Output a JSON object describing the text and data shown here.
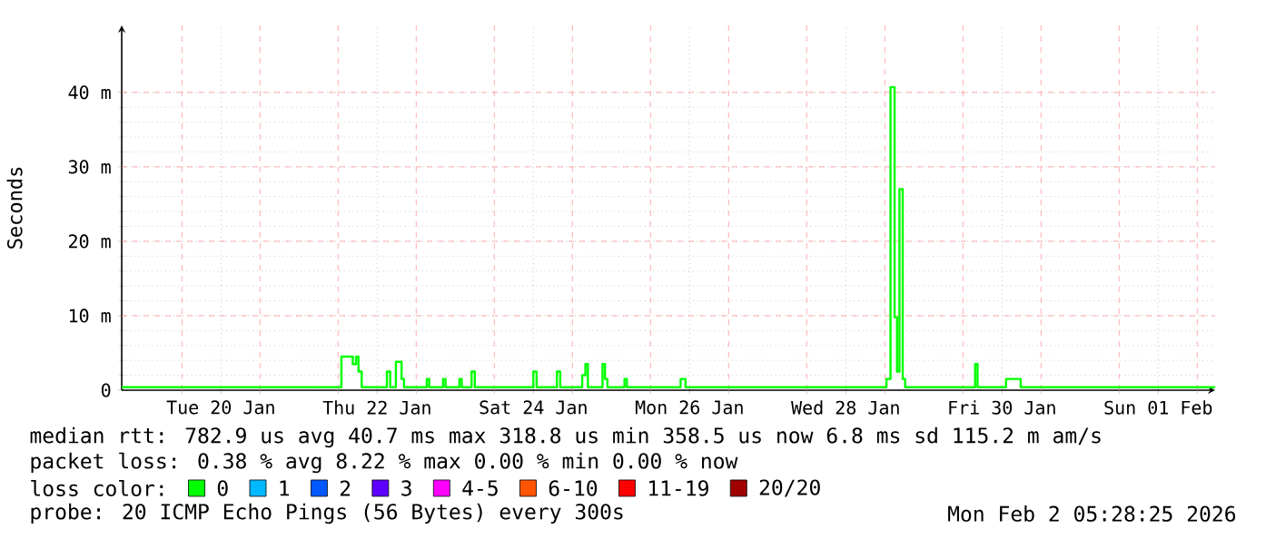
{
  "chart_data": {
    "type": "step",
    "ylabel": "Seconds",
    "xlim": [
      "2026-01-19T05:30",
      "2026-02-02T05:30"
    ],
    "xticks": [
      {
        "value": "2026-01-20T00:00",
        "label": null
      },
      {
        "value": "2026-01-20T12:00",
        "label": "Tue 20 Jan"
      },
      {
        "value": "2026-01-21T00:00",
        "label": null
      },
      {
        "value": "2026-01-22T00:00",
        "label": null
      },
      {
        "value": "2026-01-22T12:00",
        "label": "Thu 22 Jan"
      },
      {
        "value": "2026-01-23T00:00",
        "label": null
      },
      {
        "value": "2026-01-24T00:00",
        "label": null
      },
      {
        "value": "2026-01-24T12:00",
        "label": "Sat 24 Jan"
      },
      {
        "value": "2026-01-25T00:00",
        "label": null
      },
      {
        "value": "2026-01-26T00:00",
        "label": null
      },
      {
        "value": "2026-01-26T12:00",
        "label": "Mon 26 Jan"
      },
      {
        "value": "2026-01-27T00:00",
        "label": null
      },
      {
        "value": "2026-01-28T00:00",
        "label": null
      },
      {
        "value": "2026-01-28T12:00",
        "label": "Wed 28 Jan"
      },
      {
        "value": "2026-01-29T00:00",
        "label": null
      },
      {
        "value": "2026-01-30T00:00",
        "label": null
      },
      {
        "value": "2026-01-30T12:00",
        "label": "Fri 30 Jan"
      },
      {
        "value": "2026-01-31T00:00",
        "label": null
      },
      {
        "value": "2026-02-01T00:00",
        "label": null
      },
      {
        "value": "2026-02-01T12:00",
        "label": "Sun 01 Feb"
      },
      {
        "value": "2026-02-02T00:00",
        "label": null
      }
    ],
    "ylim": [
      0,
      49
    ],
    "yticks": [
      0,
      {
        "value": 10,
        "label": "10 m"
      },
      {
        "value": 20,
        "label": "20 m"
      },
      {
        "value": 30,
        "label": "30 m"
      },
      {
        "value": 40,
        "label": "40 m"
      }
    ],
    "grid": true,
    "legend": "bottom",
    "legend_title": "loss color:",
    "x": [
      "2026-01-19T05:30",
      "2026-01-22T01:00",
      "2026-01-22T04:30",
      "2026-01-22T05:30",
      "2026-01-22T06:15",
      "2026-01-22T07:15",
      "2026-01-22T15:00",
      "2026-01-22T16:00",
      "2026-01-22T17:45",
      "2026-01-22T19:30",
      "2026-01-22T20:15",
      "2026-01-23T03:15",
      "2026-01-23T04:00",
      "2026-01-23T08:15",
      "2026-01-23T09:00",
      "2026-01-23T13:15",
      "2026-01-23T14:00",
      "2026-01-23T17:00",
      "2026-01-23T18:00",
      "2026-01-24T12:00",
      "2026-01-24T13:00",
      "2026-01-24T19:15",
      "2026-01-24T20:15",
      "2026-01-25T03:00",
      "2026-01-25T04:00",
      "2026-01-25T04:45",
      "2026-01-25T09:15",
      "2026-01-25T10:00",
      "2026-01-25T10:45",
      "2026-01-25T16:00",
      "2026-01-25T16:45",
      "2026-01-26T09:15",
      "2026-01-26T10:45",
      "2026-01-29T00:30",
      "2026-01-29T01:45",
      "2026-01-29T03:00",
      "2026-01-29T03:45",
      "2026-01-29T04:30",
      "2026-01-29T05:30",
      "2026-01-29T06:15",
      "2026-01-30T03:45",
      "2026-01-30T04:30",
      "2026-01-30T13:15",
      "2026-01-30T17:45",
      "2026-02-02T05:30"
    ],
    "series": [
      {
        "name": "0",
        "color": "#00ff00",
        "values": [
          0.4,
          4.5,
          3.5,
          4.5,
          2.5,
          0.4,
          2.5,
          0.4,
          3.8,
          1.5,
          0.4,
          1.5,
          0.4,
          1.5,
          0.4,
          1.5,
          0.4,
          2.5,
          0.4,
          2.5,
          0.4,
          2.5,
          0.4,
          2.0,
          3.5,
          0.4,
          3.5,
          1.5,
          0.4,
          1.5,
          0.4,
          1.5,
          0.4,
          1.5,
          40.7,
          9.8,
          2.5,
          27,
          1.5,
          0.4,
          3.5,
          0.4,
          1.5,
          0.4,
          0.4
        ]
      },
      {
        "name": "1",
        "color": "#00b8ff",
        "values": [
          null,
          null,
          null,
          null,
          null,
          null,
          null,
          null,
          null,
          null,
          null,
          null,
          null,
          null,
          null,
          null,
          null,
          null,
          null,
          null,
          null,
          null,
          null,
          null,
          null,
          null,
          null,
          null,
          null,
          null,
          null,
          null,
          null,
          null,
          null,
          null,
          null,
          null,
          null,
          null,
          null,
          null,
          null,
          null,
          null
        ]
      },
      {
        "name": "2",
        "color": "#0059ff",
        "values": [
          null,
          null,
          null,
          null,
          null,
          null,
          null,
          null,
          null,
          null,
          null,
          null,
          null,
          null,
          null,
          null,
          null,
          null,
          null,
          null,
          null,
          null,
          null,
          null,
          null,
          null,
          null,
          null,
          null,
          null,
          null,
          null,
          null,
          null,
          null,
          null,
          null,
          null,
          null,
          null,
          null,
          null,
          null,
          null,
          null
        ]
      },
      {
        "name": "3",
        "color": "#5e00ff",
        "values": [
          null,
          null,
          null,
          null,
          null,
          null,
          null,
          null,
          null,
          null,
          null,
          null,
          null,
          null,
          null,
          null,
          null,
          null,
          null,
          null,
          null,
          null,
          null,
          null,
          null,
          null,
          null,
          null,
          null,
          null,
          null,
          null,
          null,
          null,
          null,
          null,
          null,
          null,
          null,
          null,
          null,
          null,
          null,
          null,
          null
        ]
      },
      {
        "name": "4-5",
        "color": "#ff00ff",
        "values": [
          null,
          null,
          null,
          null,
          null,
          null,
          null,
          null,
          null,
          null,
          null,
          null,
          null,
          null,
          null,
          null,
          null,
          null,
          null,
          null,
          null,
          null,
          null,
          null,
          null,
          null,
          null,
          null,
          null,
          null,
          null,
          null,
          null,
          null,
          null,
          null,
          null,
          null,
          null,
          null,
          null,
          null,
          null,
          null,
          null
        ]
      },
      {
        "name": "6-10",
        "color": "#ff5500",
        "values": [
          null,
          null,
          null,
          null,
          null,
          null,
          null,
          null,
          null,
          null,
          null,
          null,
          null,
          null,
          null,
          null,
          null,
          null,
          null,
          null,
          null,
          null,
          null,
          null,
          null,
          null,
          null,
          null,
          null,
          null,
          null,
          null,
          null,
          null,
          null,
          null,
          null,
          null,
          null,
          null,
          null,
          null,
          null,
          null,
          null
        ]
      },
      {
        "name": "11-19",
        "color": "#ff0000",
        "values": [
          null,
          null,
          null,
          null,
          null,
          null,
          null,
          null,
          null,
          null,
          null,
          null,
          null,
          null,
          null,
          null,
          null,
          null,
          null,
          null,
          null,
          null,
          null,
          null,
          null,
          null,
          null,
          null,
          null,
          null,
          null,
          null,
          null,
          null,
          null,
          null,
          null,
          null,
          null,
          null,
          null,
          null,
          null,
          null,
          null
        ]
      },
      {
        "name": "20/20",
        "color": "#a10000",
        "values": [
          null,
          null,
          null,
          null,
          null,
          null,
          null,
          null,
          null,
          null,
          null,
          null,
          null,
          null,
          null,
          null,
          null,
          null,
          null,
          null,
          null,
          null,
          null,
          null,
          null,
          null,
          null,
          null,
          null,
          null,
          null,
          null,
          null,
          null,
          null,
          null,
          null,
          null,
          null,
          null,
          null,
          null,
          null,
          null,
          null
        ]
      }
    ],
    "annotations": [
      "median rtt:  782.9 us avg  40.7 ms max  318.8 us min  358.5 us now  6.8 ms sd  115.2 m am/s",
      "packet loss: 0.38 % avg  8.22 % max  0.00 % min  0.00 % now",
      "probe:       20 ICMP Echo Pings (56 Bytes) every 300s",
      "Mon Feb  2 05:28:25 2026"
    ]
  }
}
